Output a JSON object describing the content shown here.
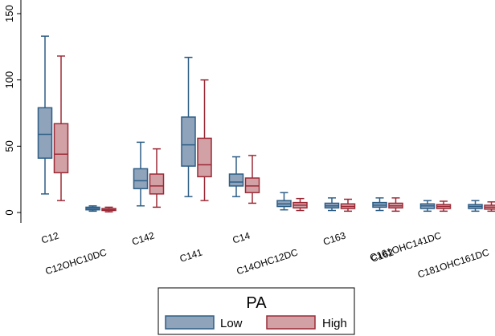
{
  "chart_data": {
    "type": "boxplot",
    "categories": [
      "C12",
      "C12OHC10DC",
      "C142",
      "C141",
      "C14",
      "C14OHC12DC",
      "C163",
      "C162",
      "C161OHC141DC",
      "C181OHC161DC"
    ],
    "ylim": [
      0,
      150
    ],
    "yticks": [
      0,
      50,
      100,
      150
    ],
    "grid": false,
    "legend_title": "PA",
    "legend_position": "bottom",
    "series": [
      {
        "name": "Low",
        "fill": "#8fa3bb",
        "stroke": "#2e5e86",
        "boxes": [
          {
            "min": 14,
            "q1": 41,
            "median": 59,
            "q3": 79,
            "max": 133
          },
          {
            "min": 1,
            "q1": 2,
            "median": 3,
            "q3": 4,
            "max": 5
          },
          {
            "min": 5,
            "q1": 18,
            "median": 24,
            "q3": 33,
            "max": 53
          },
          {
            "min": 12,
            "q1": 35,
            "median": 51,
            "q3": 72,
            "max": 117
          },
          {
            "min": 12,
            "q1": 20,
            "median": 23,
            "q3": 29,
            "max": 42
          },
          {
            "min": 2,
            "q1": 4.5,
            "median": 6.5,
            "q3": 9,
            "max": 15
          },
          {
            "min": 1.5,
            "q1": 3.5,
            "median": 5,
            "q3": 7,
            "max": 11
          },
          {
            "min": 1.5,
            "q1": 4,
            "median": 5.5,
            "q3": 7.5,
            "max": 11
          },
          {
            "min": 1,
            "q1": 3,
            "median": 5,
            "q3": 6.5,
            "max": 9
          },
          {
            "min": 1,
            "q1": 3,
            "median": 4.5,
            "q3": 6,
            "max": 9
          }
        ]
      },
      {
        "name": "High",
        "fill": "#d1a1a6",
        "stroke": "#9c2a36",
        "boxes": [
          {
            "min": 9,
            "q1": 30,
            "median": 44,
            "q3": 67,
            "max": 118
          },
          {
            "min": 0.5,
            "q1": 1.5,
            "median": 2,
            "q3": 3,
            "max": 4
          },
          {
            "min": 4,
            "q1": 14,
            "median": 20,
            "q3": 29,
            "max": 48
          },
          {
            "min": 9,
            "q1": 27,
            "median": 36,
            "q3": 56,
            "max": 100
          },
          {
            "min": 7,
            "q1": 15,
            "median": 20,
            "q3": 26,
            "max": 43
          },
          {
            "min": 1.5,
            "q1": 3.5,
            "median": 5.5,
            "q3": 7.5,
            "max": 10.5
          },
          {
            "min": 1,
            "q1": 3,
            "median": 4.5,
            "q3": 6.5,
            "max": 10
          },
          {
            "min": 1,
            "q1": 3.5,
            "median": 5,
            "q3": 7,
            "max": 11
          },
          {
            "min": 1,
            "q1": 3,
            "median": 4.5,
            "q3": 6,
            "max": 8.5
          },
          {
            "min": 1,
            "q1": 2.5,
            "median": 4,
            "q3": 5.5,
            "max": 8
          }
        ]
      }
    ]
  }
}
